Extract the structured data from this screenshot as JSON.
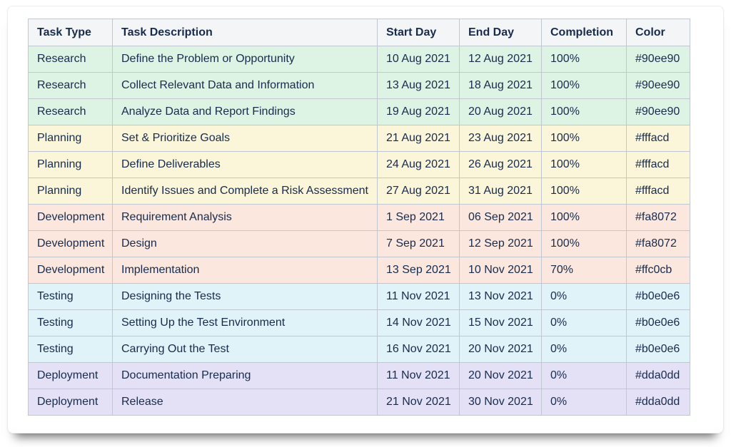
{
  "table": {
    "columns": [
      {
        "key": "type",
        "label": "Task Type"
      },
      {
        "key": "description",
        "label": "Task Description"
      },
      {
        "key": "start",
        "label": "Start Day"
      },
      {
        "key": "end",
        "label": "End Day"
      },
      {
        "key": "completion",
        "label": "Completion"
      },
      {
        "key": "color",
        "label": "Color"
      }
    ],
    "rows": [
      {
        "type": "Research",
        "description": "Define the Problem or Opportunity",
        "start": "10 Aug 2021",
        "end": "12 Aug 2021",
        "completion": "100%",
        "color": "#90ee90"
      },
      {
        "type": "Research",
        "description": "Collect Relevant Data and Information",
        "start": "13 Aug 2021",
        "end": "18 Aug 2021",
        "completion": "100%",
        "color": "#90ee90"
      },
      {
        "type": "Research",
        "description": "Analyze Data and Report Findings",
        "start": "19 Aug 2021",
        "end": "20 Aug 2021",
        "completion": "100%",
        "color": "#90ee90"
      },
      {
        "type": "Planning",
        "description": "Set & Prioritize Goals",
        "start": "21 Aug 2021",
        "end": "23 Aug 2021",
        "completion": "100%",
        "color": "#fffacd"
      },
      {
        "type": "Planning",
        "description": "Define Deliverables",
        "start": "24 Aug 2021",
        "end": "26 Aug 2021",
        "completion": "100%",
        "color": "#fffacd"
      },
      {
        "type": "Planning",
        "description": "Identify Issues and Complete a Risk Assessment",
        "start": "27 Aug 2021",
        "end": "31 Aug 2021",
        "completion": "100%",
        "color": "#fffacd"
      },
      {
        "type": "Development",
        "description": "Requirement Analysis",
        "start": "1 Sep 2021",
        "end": "06 Sep 2021",
        "completion": "100%",
        "color": "#fa8072"
      },
      {
        "type": "Development",
        "description": "Design",
        "start": "7 Sep 2021",
        "end": "12 Sep 2021",
        "completion": "100%",
        "color": "#fa8072"
      },
      {
        "type": "Development",
        "description": "Implementation",
        "start": "13 Sep 2021",
        "end": "10 Nov 2021",
        "completion": "70%",
        "color": "#ffc0cb"
      },
      {
        "type": "Testing",
        "description": "Designing the Tests",
        "start": "11 Nov 2021",
        "end": "13 Nov 2021",
        "completion": "0%",
        "color": "#b0e0e6"
      },
      {
        "type": "Testing",
        "description": "Setting Up the Test Environment",
        "start": "14 Nov 2021",
        "end": "15 Nov 2021",
        "completion": "0%",
        "color": "#b0e0e6"
      },
      {
        "type": "Testing",
        "description": "Carrying Out the Test",
        "start": "16 Nov 2021",
        "end": "20 Nov 2021",
        "completion": "0%",
        "color": "#b0e0e6"
      },
      {
        "type": "Deployment",
        "description": "Documentation Preparing",
        "start": "11 Nov 2021",
        "end": "20 Nov 2021",
        "completion": "0%",
        "color": "#dda0dd"
      },
      {
        "type": "Deployment",
        "description": "Release",
        "start": "21 Nov 2021",
        "end": "30 Nov 2021",
        "completion": "0%",
        "color": "#dda0dd"
      }
    ]
  },
  "band_colors": {
    "Research": "#ddf4e5",
    "Planning": "#fbf6da",
    "Development": "#fbe7dd",
    "Testing": "#dff3f9",
    "Deployment": "#e4e1f6"
  },
  "theme": {
    "text_color": "#172b4d",
    "header_background": "#f4f5f7",
    "border_color": "#c1c7d0",
    "card_background": "#ffffff"
  }
}
